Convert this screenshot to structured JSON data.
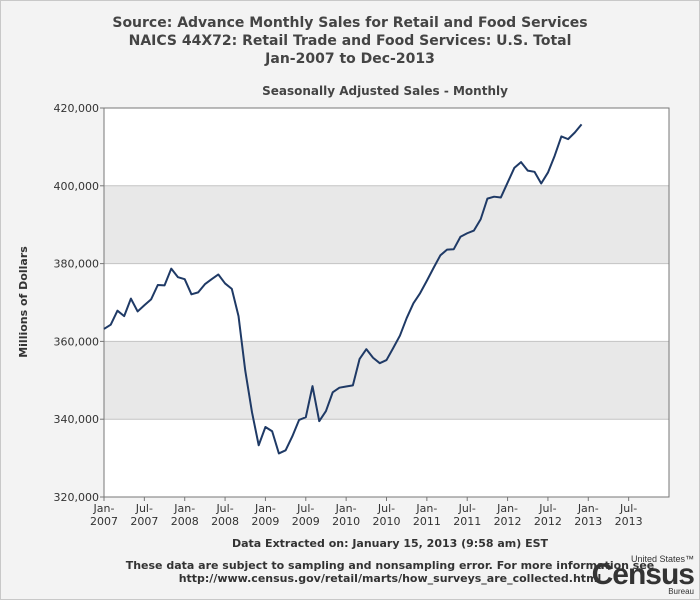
{
  "header": {
    "title_lines": [
      "Source: Advance Monthly Sales for Retail and Food Services",
      "NAICS 44X72: Retail Trade and Food Services: U.S. Total",
      "Jan-2007 to Dec-2013"
    ]
  },
  "footer": {
    "extracted": "Data Extracted on: January 15, 2013 (9:58 am) EST",
    "note_line1": "These data are subject to sampling and nonsampling error. For more information see",
    "note_line2": "http://www.census.gov/retail/marts/how_surveys_are_collected.html"
  },
  "logo": {
    "top": "United States™",
    "main": "Census",
    "bottom": "Bureau"
  },
  "colors": {
    "line": "#1f3a66",
    "band": "#e8e8e8",
    "plot_bg": "#ffffff"
  },
  "chart_data": {
    "type": "line",
    "title": "Seasonally Adjusted Sales - Monthly",
    "ylabel": "Millions of Dollars",
    "xlabel": "",
    "ylim": [
      320000,
      420000
    ],
    "yticks": [
      "320,000",
      "340,000",
      "360,000",
      "380,000",
      "400,000",
      "420,000"
    ],
    "ytick_values": [
      320000,
      340000,
      360000,
      380000,
      400000,
      420000
    ],
    "xlim": [
      "Jan-2007",
      "Dec-2013"
    ],
    "xticks": [
      {
        "m": "Jan-",
        "y": "2007",
        "index": 0
      },
      {
        "m": "Jul-",
        "y": "2007",
        "index": 6
      },
      {
        "m": "Jan-",
        "y": "2008",
        "index": 12
      },
      {
        "m": "Jul-",
        "y": "2008",
        "index": 18
      },
      {
        "m": "Jan-",
        "y": "2009",
        "index": 24
      },
      {
        "m": "Jul-",
        "y": "2009",
        "index": 30
      },
      {
        "m": "Jan-",
        "y": "2010",
        "index": 36
      },
      {
        "m": "Jul-",
        "y": "2010",
        "index": 42
      },
      {
        "m": "Jan-",
        "y": "2011",
        "index": 48
      },
      {
        "m": "Jul-",
        "y": "2011",
        "index": 54
      },
      {
        "m": "Jan-",
        "y": "2012",
        "index": 60
      },
      {
        "m": "Jul-",
        "y": "2012",
        "index": 66
      },
      {
        "m": "Jan-",
        "y": "2013",
        "index": 72
      },
      {
        "m": "Jul-",
        "y": "2013",
        "index": 78
      }
    ],
    "grid": "horizontal",
    "series": [
      {
        "start": "Jan-2007",
        "values": [
          363200,
          364300,
          367900,
          366500,
          371000,
          367700,
          369300,
          370800,
          374500,
          374400,
          378700,
          376500,
          376000,
          372100,
          372600,
          374700,
          376000,
          377200,
          374900,
          373500,
          366500,
          352500,
          341800,
          333300,
          338000,
          336900,
          331200,
          332000,
          335600,
          339800,
          340500,
          348500,
          339500,
          342100,
          346900,
          348100,
          348400,
          348700,
          355500,
          358000,
          355800,
          354400,
          355200,
          358300,
          361500,
          366000,
          369800,
          372400,
          375600,
          378900,
          382100,
          383600,
          383700,
          386900,
          387800,
          388500,
          391400,
          396700,
          397200,
          397000,
          400800,
          404600,
          406100,
          403900,
          403600,
          400600,
          403400,
          407700,
          412700,
          412000,
          413700,
          415800
        ]
      }
    ]
  }
}
